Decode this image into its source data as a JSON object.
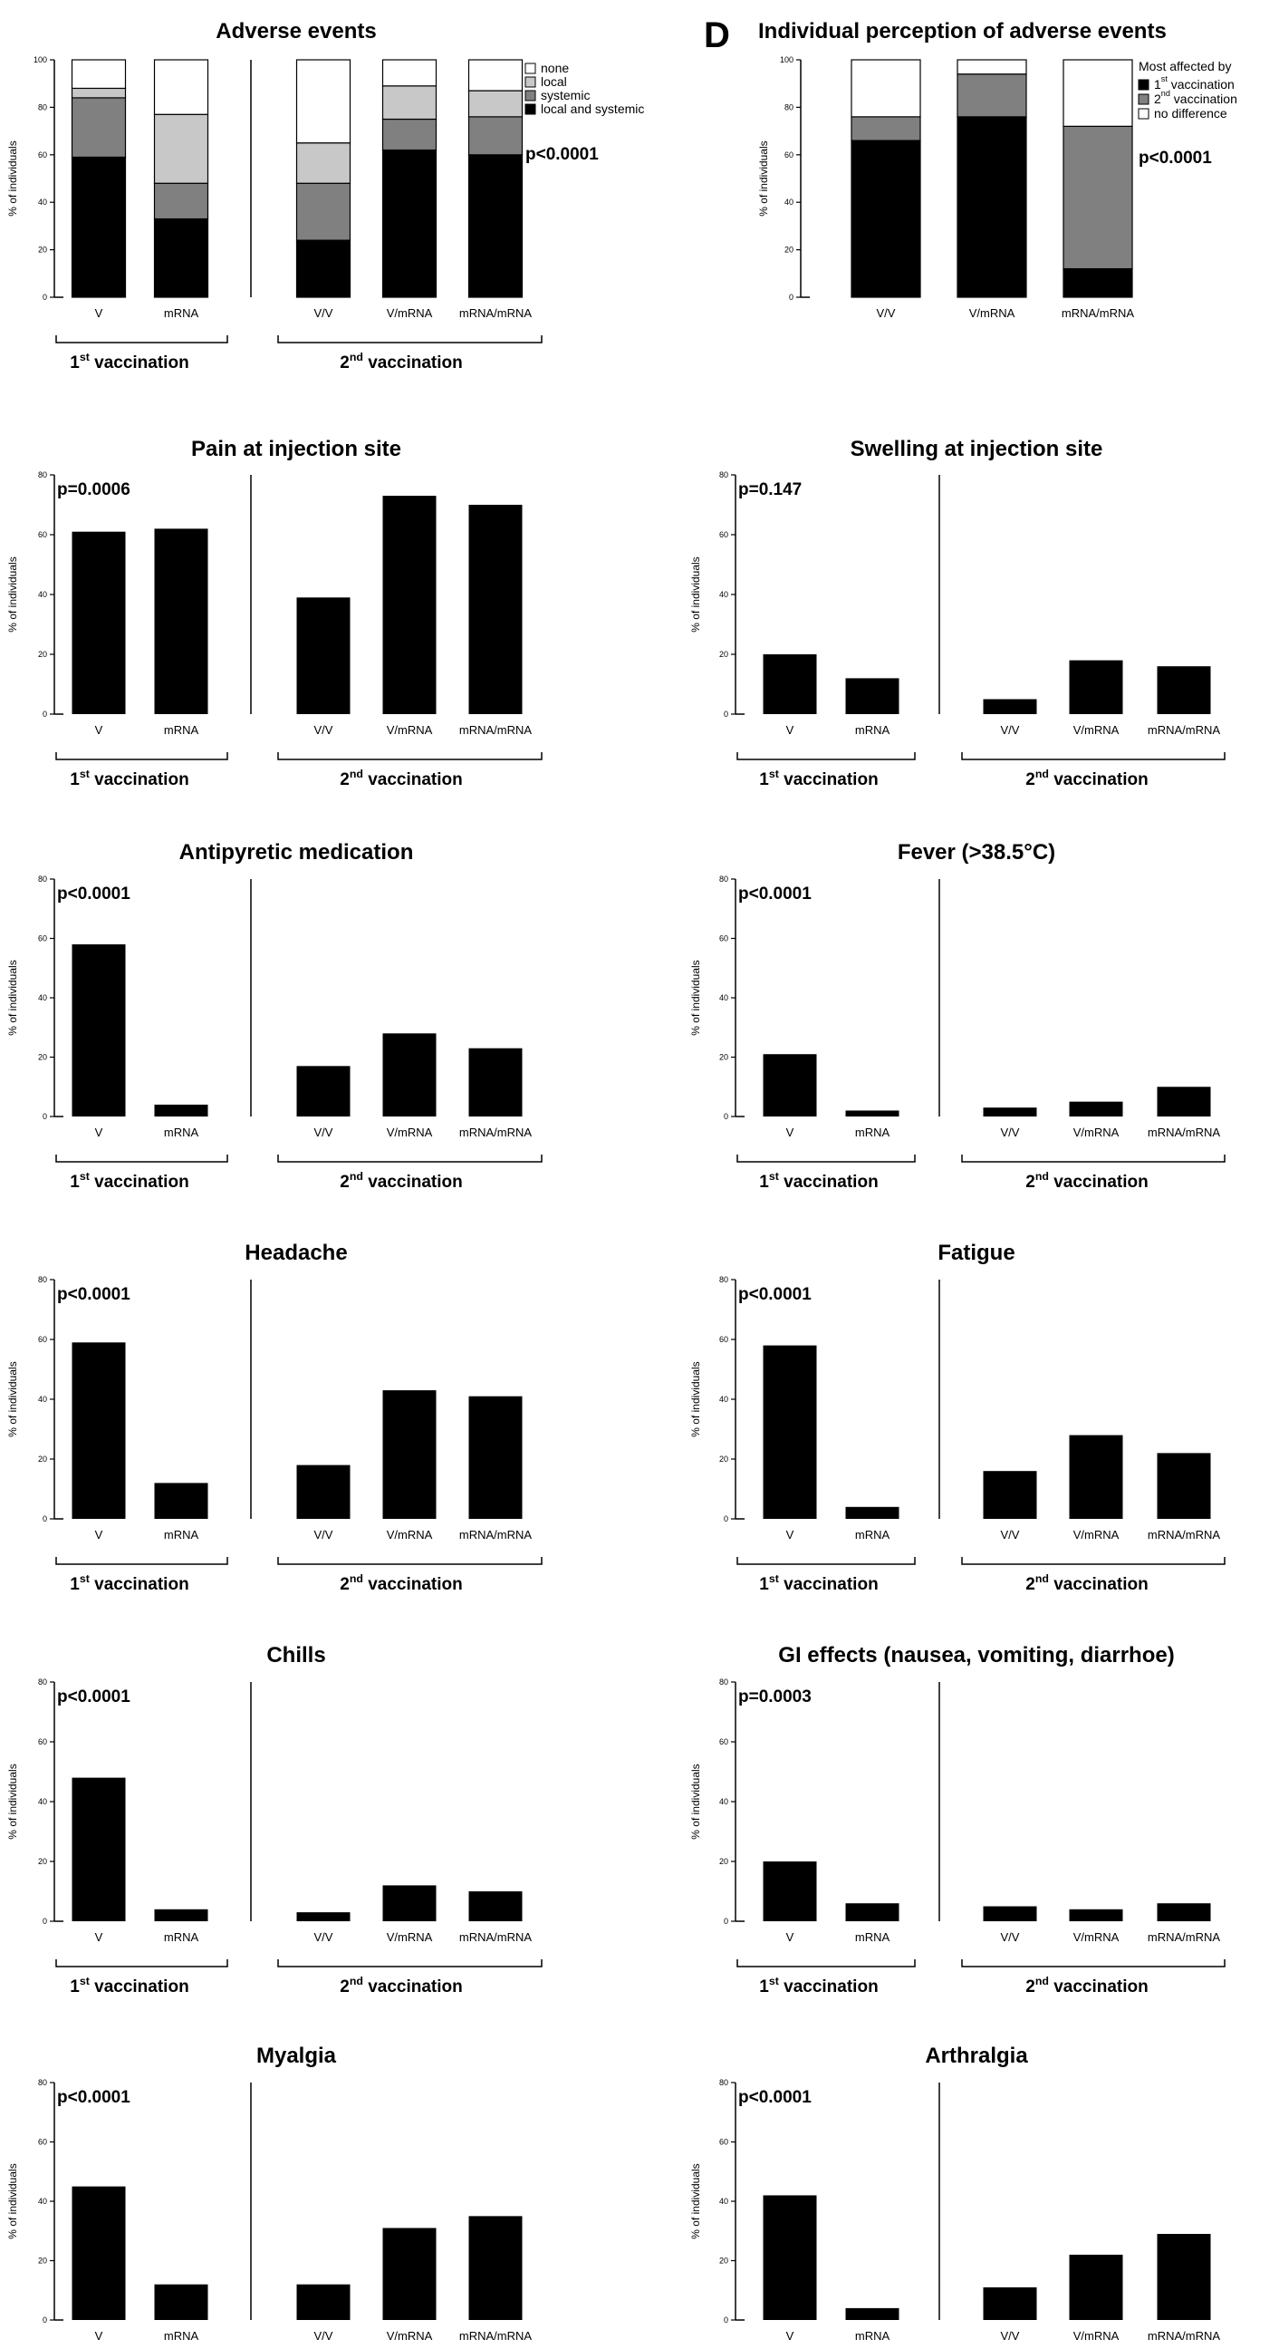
{
  "panel_letter_d": "D",
  "chart_data": [
    {
      "type": "stacked-bar",
      "title": "Adverse events",
      "ylabel": "% of individuals",
      "ylim": [
        0,
        100
      ],
      "yticks": [
        0,
        20,
        40,
        60,
        80,
        100
      ],
      "categories": [
        "V",
        "mRNA",
        "V/V",
        "V/mRNA",
        "mRNA/mRNA"
      ],
      "groups": [
        {
          "label_pre": "1",
          "label_sup": "st",
          "label_post": " vaccination",
          "categories": [
            "V",
            "mRNA"
          ]
        },
        {
          "label_pre": "2",
          "label_sup": "nd",
          "label_post": " vaccination",
          "categories": [
            "V/V",
            "V/mRNA",
            "mRNA/mRNA"
          ]
        }
      ],
      "series": [
        {
          "name": "local and systemic",
          "color": "#000000",
          "values": [
            59,
            33,
            24,
            62,
            60
          ]
        },
        {
          "name": "systemic",
          "color": "#808080",
          "values": [
            25,
            15,
            24,
            13,
            16
          ]
        },
        {
          "name": "local",
          "color": "#c8c8c8",
          "values": [
            4,
            29,
            17,
            14,
            11
          ]
        },
        {
          "name": "none",
          "color": "#ffffff",
          "values": [
            12,
            23,
            35,
            11,
            13
          ]
        }
      ],
      "legend_order": [
        "none",
        "local",
        "systemic",
        "local and systemic"
      ],
      "pvalue": "p<0.0001"
    },
    {
      "type": "stacked-bar",
      "title": "Individual perception of adverse events",
      "ylabel": "% of individuals",
      "ylim": [
        0,
        100
      ],
      "yticks": [
        0,
        20,
        40,
        60,
        80,
        100
      ],
      "categories": [
        "V/V",
        "V/mRNA",
        "mRNA/mRNA"
      ],
      "legend_title": "Most affected by",
      "series": [
        {
          "name_pre": "1",
          "name_sup": "st",
          "name_post": " vaccination",
          "color": "#000000",
          "values": [
            66,
            76,
            12
          ]
        },
        {
          "name_pre": "2",
          "name_sup": "nd",
          "name_post": " vaccination",
          "color": "#808080",
          "values": [
            10,
            18,
            60
          ]
        },
        {
          "name": "no difference",
          "color": "#ffffff",
          "values": [
            24,
            6,
            28
          ]
        }
      ],
      "pvalue": "p<0.0001"
    },
    {
      "type": "bar",
      "title": "Pain at injection site",
      "ylabel": "% of individuals",
      "ylim": [
        0,
        80
      ],
      "yticks": [
        0,
        20,
        40,
        60,
        80
      ],
      "categories": [
        "V",
        "mRNA",
        "V/V",
        "V/mRNA",
        "mRNA/mRNA"
      ],
      "values": [
        61,
        62,
        39,
        73,
        70
      ],
      "pvalue": "p=0.0006"
    },
    {
      "type": "bar",
      "title": "Swelling at injection site",
      "ylabel": "% of individuals",
      "ylim": [
        0,
        80
      ],
      "yticks": [
        0,
        20,
        40,
        60,
        80
      ],
      "categories": [
        "V",
        "mRNA",
        "V/V",
        "V/mRNA",
        "mRNA/mRNA"
      ],
      "values": [
        20,
        12,
        5,
        18,
        16
      ],
      "pvalue": "p=0.147"
    },
    {
      "type": "bar",
      "title": "Antipyretic medication",
      "ylabel": "% of individuals",
      "ylim": [
        0,
        80
      ],
      "yticks": [
        0,
        20,
        40,
        60,
        80
      ],
      "categories": [
        "V",
        "mRNA",
        "V/V",
        "V/mRNA",
        "mRNA/mRNA"
      ],
      "values": [
        58,
        4,
        17,
        28,
        23
      ],
      "pvalue": "p<0.0001"
    },
    {
      "type": "bar",
      "title": "Fever (>38.5°C)",
      "ylabel": "% of individuals",
      "ylim": [
        0,
        80
      ],
      "yticks": [
        0,
        20,
        40,
        60,
        80
      ],
      "categories": [
        "V",
        "mRNA",
        "V/V",
        "V/mRNA",
        "mRNA/mRNA"
      ],
      "values": [
        21,
        2,
        3,
        5,
        10
      ],
      "pvalue": "p<0.0001"
    },
    {
      "type": "bar",
      "title": "Headache",
      "ylabel": "% of individuals",
      "ylim": [
        0,
        80
      ],
      "yticks": [
        0,
        20,
        40,
        60,
        80
      ],
      "categories": [
        "V",
        "mRNA",
        "V/V",
        "V/mRNA",
        "mRNA/mRNA"
      ],
      "values": [
        59,
        12,
        18,
        43,
        41
      ],
      "pvalue": "p<0.0001"
    },
    {
      "type": "bar",
      "title": "Fatigue",
      "ylabel": "% of individuals",
      "ylim": [
        0,
        80
      ],
      "yticks": [
        0,
        20,
        40,
        60,
        80
      ],
      "categories": [
        "V",
        "mRNA",
        "V/V",
        "V/mRNA",
        "mRNA/mRNA"
      ],
      "values": [
        58,
        4,
        16,
        28,
        22
      ],
      "pvalue": "p<0.0001"
    },
    {
      "type": "bar",
      "title": "Chills",
      "ylabel": "% of individuals",
      "ylim": [
        0,
        80
      ],
      "yticks": [
        0,
        20,
        40,
        60,
        80
      ],
      "categories": [
        "V",
        "mRNA",
        "V/V",
        "V/mRNA",
        "mRNA/mRNA"
      ],
      "values": [
        48,
        4,
        3,
        12,
        10
      ],
      "pvalue": "p<0.0001"
    },
    {
      "type": "bar",
      "title": "GI effects (nausea, vomiting, diarrhoe)",
      "ylabel": "% of individuals",
      "ylim": [
        0,
        80
      ],
      "yticks": [
        0,
        20,
        40,
        60,
        80
      ],
      "categories": [
        "V",
        "mRNA",
        "V/V",
        "V/mRNA",
        "mRNA/mRNA"
      ],
      "values": [
        20,
        6,
        5,
        4,
        6
      ],
      "pvalue": "p=0.0003"
    },
    {
      "type": "bar",
      "title": "Myalgia",
      "ylabel": "% of individuals",
      "ylim": [
        0,
        80
      ],
      "yticks": [
        0,
        20,
        40,
        60,
        80
      ],
      "categories": [
        "V",
        "mRNA",
        "V/V",
        "V/mRNA",
        "mRNA/mRNA"
      ],
      "values": [
        45,
        12,
        12,
        31,
        35
      ],
      "pvalue": "p<0.0001"
    },
    {
      "type": "bar",
      "title": "Arthralgia",
      "ylabel": "% of individuals",
      "ylim": [
        0,
        80
      ],
      "yticks": [
        0,
        20,
        40,
        60,
        80
      ],
      "categories": [
        "V",
        "mRNA",
        "V/V",
        "V/mRNA",
        "mRNA/mRNA"
      ],
      "values": [
        42,
        4,
        11,
        22,
        29
      ],
      "pvalue": "p<0.0001"
    }
  ]
}
